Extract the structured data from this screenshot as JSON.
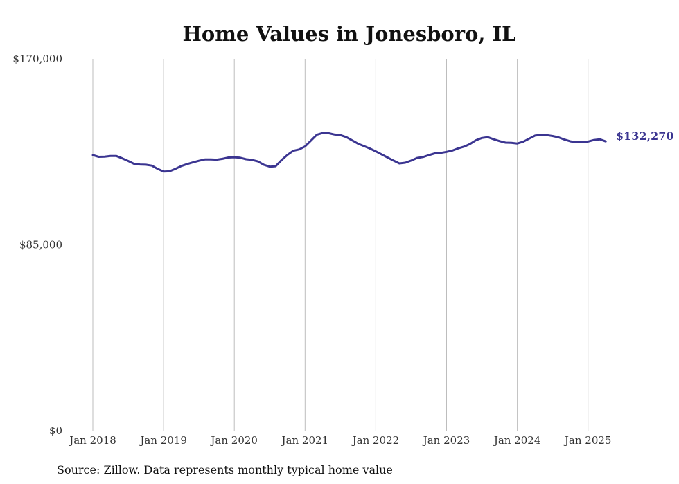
{
  "chart_data": {
    "type": "line",
    "title": "Home Values in Jonesboro, IL",
    "source": "Source: Zillow. Data represents monthly typical home value",
    "y_tick_labels": [
      "$170,000",
      "$85,000",
      "$0"
    ],
    "y_ticks": [
      170000,
      85000,
      0
    ],
    "ylim": [
      0,
      170000
    ],
    "x_tick_labels": [
      "Jan 2018",
      "Jan 2019",
      "Jan 2020",
      "Jan 2021",
      "Jan 2022",
      "Jan 2023",
      "Jan 2024",
      "Jan 2025"
    ],
    "x_ticks": [
      "2018-01",
      "2019-01",
      "2020-01",
      "2021-01",
      "2022-01",
      "2023-01",
      "2024-01",
      "2025-01"
    ],
    "grid": "vertical",
    "end_label": "$132,270",
    "series": [
      {
        "color": "#3b3591",
        "points": [
          [
            "2018-01",
            126000
          ],
          [
            "2018-02",
            125200
          ],
          [
            "2018-03",
            125300
          ],
          [
            "2018-04",
            125600
          ],
          [
            "2018-05",
            125600
          ],
          [
            "2018-06",
            124500
          ],
          [
            "2018-07",
            123300
          ],
          [
            "2018-08",
            122000
          ],
          [
            "2018-09",
            121700
          ],
          [
            "2018-10",
            121600
          ],
          [
            "2018-11",
            121200
          ],
          [
            "2018-12",
            119700
          ],
          [
            "2019-01",
            118500
          ],
          [
            "2019-02",
            118600
          ],
          [
            "2019-03",
            119700
          ],
          [
            "2019-04",
            121000
          ],
          [
            "2019-05",
            121900
          ],
          [
            "2019-06",
            122700
          ],
          [
            "2019-07",
            123400
          ],
          [
            "2019-08",
            124000
          ],
          [
            "2019-09",
            124000
          ],
          [
            "2019-10",
            123900
          ],
          [
            "2019-11",
            124300
          ],
          [
            "2019-12",
            124900
          ],
          [
            "2020-01",
            125000
          ],
          [
            "2020-02",
            124800
          ],
          [
            "2020-03",
            124100
          ],
          [
            "2020-04",
            123800
          ],
          [
            "2020-05",
            123100
          ],
          [
            "2020-06",
            121600
          ],
          [
            "2020-07",
            120700
          ],
          [
            "2020-08",
            120900
          ],
          [
            "2020-09",
            123700
          ],
          [
            "2020-10",
            126100
          ],
          [
            "2020-11",
            128000
          ],
          [
            "2020-12",
            128600
          ],
          [
            "2021-01",
            130000
          ],
          [
            "2021-02",
            132600
          ],
          [
            "2021-03",
            135300
          ],
          [
            "2021-04",
            136100
          ],
          [
            "2021-05",
            136000
          ],
          [
            "2021-06",
            135400
          ],
          [
            "2021-07",
            135100
          ],
          [
            "2021-08",
            134200
          ],
          [
            "2021-09",
            132700
          ],
          [
            "2021-10",
            131200
          ],
          [
            "2021-11",
            130100
          ],
          [
            "2021-12",
            129000
          ],
          [
            "2022-01",
            127700
          ],
          [
            "2022-02",
            126300
          ],
          [
            "2022-03",
            124900
          ],
          [
            "2022-04",
            123500
          ],
          [
            "2022-05",
            122200
          ],
          [
            "2022-06",
            122500
          ],
          [
            "2022-07",
            123500
          ],
          [
            "2022-08",
            124700
          ],
          [
            "2022-09",
            125100
          ],
          [
            "2022-10",
            126000
          ],
          [
            "2022-11",
            126800
          ],
          [
            "2022-12",
            127000
          ],
          [
            "2023-01",
            127500
          ],
          [
            "2023-02",
            128100
          ],
          [
            "2023-03",
            129100
          ],
          [
            "2023-04",
            129900
          ],
          [
            "2023-05",
            131100
          ],
          [
            "2023-06",
            132800
          ],
          [
            "2023-07",
            133800
          ],
          [
            "2023-08",
            134200
          ],
          [
            "2023-09",
            133200
          ],
          [
            "2023-10",
            132400
          ],
          [
            "2023-11",
            131700
          ],
          [
            "2023-12",
            131600
          ],
          [
            "2024-01",
            131300
          ],
          [
            "2024-02",
            132100
          ],
          [
            "2024-03",
            133500
          ],
          [
            "2024-04",
            134900
          ],
          [
            "2024-05",
            135200
          ],
          [
            "2024-06",
            135100
          ],
          [
            "2024-07",
            134700
          ],
          [
            "2024-08",
            134100
          ],
          [
            "2024-09",
            133100
          ],
          [
            "2024-10",
            132300
          ],
          [
            "2024-11",
            131900
          ],
          [
            "2024-12",
            131900
          ],
          [
            "2025-01",
            132200
          ],
          [
            "2025-02",
            132900
          ],
          [
            "2025-03",
            133200
          ],
          [
            "2025-04",
            132270
          ]
        ]
      }
    ]
  }
}
